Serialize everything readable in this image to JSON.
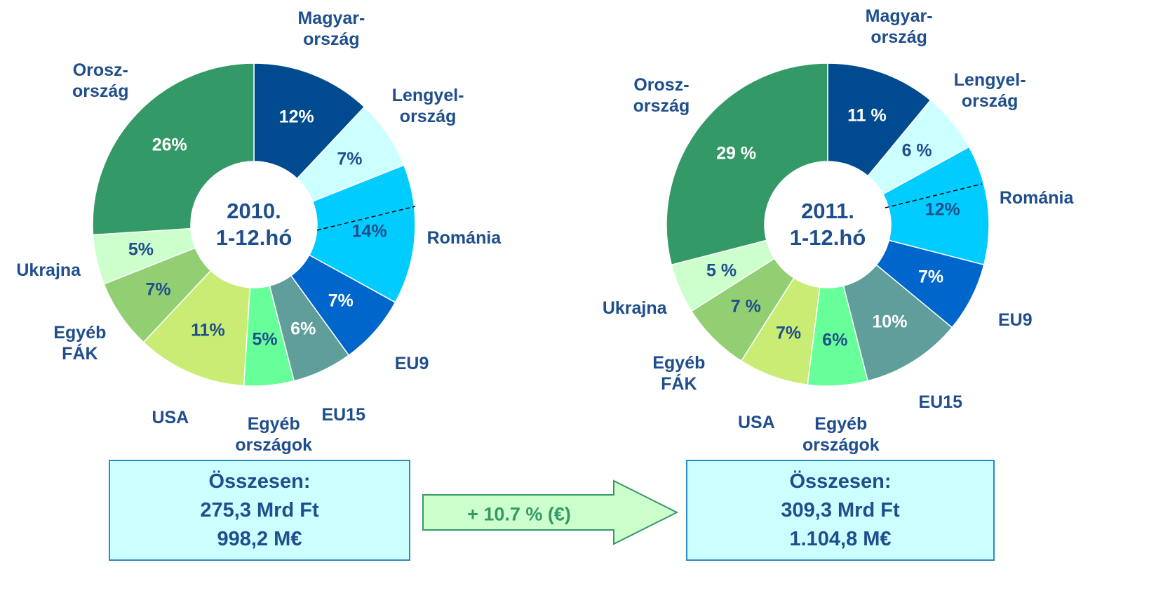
{
  "chart_data": [
    {
      "type": "pie",
      "center_label": "2010.\n1-12.hó",
      "categories": [
        "Magyar-\nország",
        "Lengyel-\nország",
        "Románia",
        "EU9",
        "EU15",
        "Egyéb\nországok",
        "USA",
        "Egyéb\nFÁK",
        "Ukrajna",
        "Orosz-\nország"
      ],
      "values": [
        12,
        7,
        14,
        7,
        6,
        5,
        11,
        7,
        5,
        26
      ],
      "value_labels": [
        "12%",
        "7%",
        "14%",
        "7%",
        "6%",
        "5%",
        "11%",
        "7%",
        "5%",
        "26%"
      ],
      "colors": [
        "#004a8f",
        "#ccffff",
        "#00ccff",
        "#0066cc",
        "#5f9e9a",
        "#66ff99",
        "#c8ec74",
        "#92cf72",
        "#ccffcc",
        "#339966"
      ],
      "total": [
        "Összesen:",
        "275,3 Mrd Ft",
        "998,2 M€"
      ]
    },
    {
      "type": "pie",
      "center_label": "2011.\n1-12.hó",
      "categories": [
        "Magyar-\nország",
        "Lengyel-\nország",
        "Románia",
        "EU9",
        "EU15",
        "Egyéb\nországok",
        "USA",
        "Egyéb\nFÁK",
        "Ukrajna",
        "Orosz-\nország"
      ],
      "values": [
        11,
        6,
        12,
        7,
        10,
        6,
        7,
        7,
        5,
        29
      ],
      "value_labels": [
        "11 %",
        "6 %",
        "12%",
        "7%",
        "10%",
        "6%",
        "7%",
        "7 %",
        "5 %",
        "29 %"
      ],
      "colors": [
        "#004a8f",
        "#ccffff",
        "#00ccff",
        "#0066cc",
        "#5f9e9a",
        "#66ff99",
        "#c8ec74",
        "#92cf72",
        "#ccffcc",
        "#339966"
      ],
      "total": [
        "Összesen:",
        "309,3 Mrd Ft",
        "1.104,8 M€"
      ]
    }
  ],
  "change_label": "+ 10.7 % (€)"
}
